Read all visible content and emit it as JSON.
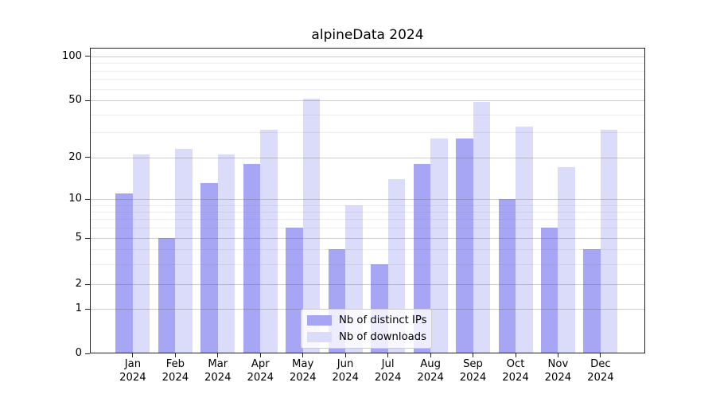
{
  "chart_data": {
    "type": "bar",
    "title": "alpineData 2024",
    "categories": [
      "Jan 2024",
      "Feb 2024",
      "Mar 2024",
      "Apr 2024",
      "May 2024",
      "Jun 2024",
      "Jul 2024",
      "Aug 2024",
      "Sep 2024",
      "Oct 2024",
      "Nov 2024",
      "Dec 2024"
    ],
    "series": [
      {
        "name": "Nb of distinct IPs",
        "color": "#a6a6f5",
        "values": [
          11,
          5,
          13,
          18,
          6,
          4,
          3,
          18,
          27,
          10,
          6,
          4
        ]
      },
      {
        "name": "Nb of downloads",
        "color": "#dbdbfa",
        "values": [
          21,
          23,
          21,
          31,
          51,
          9,
          14,
          27,
          49,
          33,
          17,
          31
        ]
      }
    ],
    "xlabel": "",
    "ylabel": "",
    "yscale": "log-like with 0 baseline",
    "yticks": [
      100,
      50,
      20,
      10,
      5,
      2,
      1,
      0
    ],
    "minor_gridlines": [
      3,
      4,
      6,
      7,
      8,
      9,
      30,
      40,
      60,
      70,
      80,
      90
    ],
    "ylim": [
      0,
      114
    ],
    "grid": "on",
    "legend_position": "lower center",
    "colors": {
      "major_grid": "#c9c9c9",
      "minor_grid": "#ececec",
      "axis_frame": "#222222",
      "text": "#000000",
      "background": "#ffffff"
    }
  }
}
